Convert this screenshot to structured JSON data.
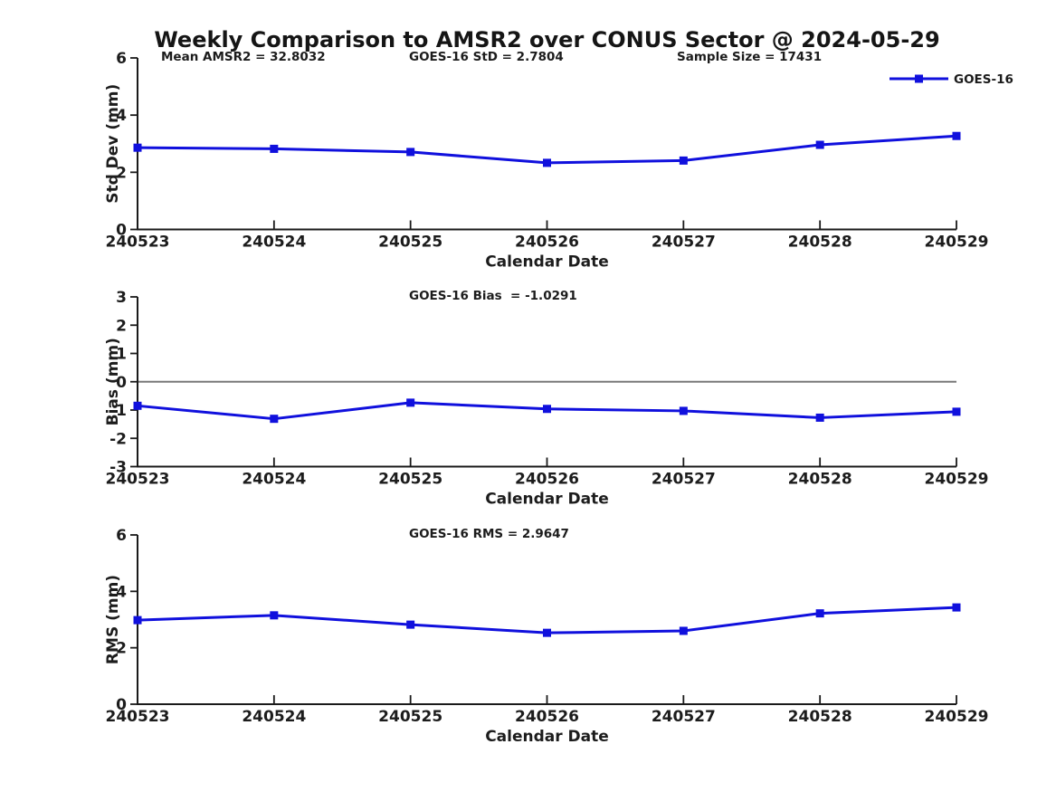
{
  "figure": {
    "title": "Weekly Comparison to AMSR2 over CONUS Sector @ 2024-05-29",
    "background_color": "#ffffff",
    "text_color": "#1c1c1c",
    "axis_color": "#1a1a1a",
    "line_color": "#1010dd",
    "zero_line_color": "#787878"
  },
  "legend": {
    "label": "GOES-16",
    "position": "top-right",
    "marker": "filled-square",
    "color": "#1010dd"
  },
  "stats": {
    "mean_amsr2": 32.8032,
    "goes16_std": 2.7804,
    "sample_size": 17431,
    "goes16_bias": -1.0291,
    "goes16_rms": 2.9647
  },
  "chart_data": [
    {
      "id": "std_dev",
      "type": "line",
      "ylabel": "Std Dev (mm)",
      "xlabel": "Calendar Date",
      "ylim": [
        0,
        6
      ],
      "yticks": [
        0,
        2,
        4,
        6
      ],
      "grid": false,
      "zero_line": false,
      "categories": [
        "240523",
        "240524",
        "240525",
        "240526",
        "240527",
        "240528",
        "240529"
      ],
      "series": [
        {
          "name": "GOES-16",
          "values": [
            2.86,
            2.82,
            2.71,
            2.33,
            2.41,
            2.96,
            3.27
          ]
        }
      ],
      "annotations": [
        "Mean AMSR2 = 32.8032",
        "GOES-16 StD = 2.7804",
        "Sample Size = 17431"
      ]
    },
    {
      "id": "bias",
      "type": "line",
      "ylabel": "Bias (mm)",
      "xlabel": "Calendar Date",
      "ylim": [
        -3,
        3
      ],
      "yticks": [
        -3,
        -2,
        -1,
        0,
        1,
        2,
        3
      ],
      "grid": false,
      "zero_line": true,
      "categories": [
        "240523",
        "240524",
        "240525",
        "240526",
        "240527",
        "240528",
        "240529"
      ],
      "series": [
        {
          "name": "GOES-16",
          "values": [
            -0.85,
            -1.31,
            -0.74,
            -0.96,
            -1.03,
            -1.27,
            -1.06
          ]
        }
      ],
      "annotations": [
        "GOES-16 Bias  = -1.0291"
      ]
    },
    {
      "id": "rms",
      "type": "line",
      "ylabel": "RMS (mm)",
      "xlabel": "Calendar Date",
      "ylim": [
        0,
        6
      ],
      "yticks": [
        0,
        2,
        4,
        6
      ],
      "grid": false,
      "zero_line": false,
      "categories": [
        "240523",
        "240524",
        "240525",
        "240526",
        "240527",
        "240528",
        "240529"
      ],
      "series": [
        {
          "name": "GOES-16",
          "values": [
            2.98,
            3.15,
            2.82,
            2.53,
            2.6,
            3.22,
            3.43
          ]
        }
      ],
      "annotations": [
        "GOES-16 RMS = 2.9647"
      ]
    }
  ]
}
